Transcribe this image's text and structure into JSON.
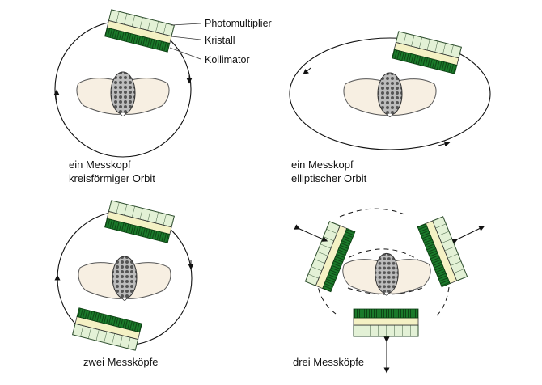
{
  "labels": {
    "photomultiplier": "Photomultiplier",
    "kristall": "Kristall",
    "kollimator": "Kollimator"
  },
  "panels": [
    {
      "caption_line1": "ein Messkopf",
      "caption_line2": "kreisförmiger Orbit"
    },
    {
      "caption_line1": "ein Messkopf",
      "caption_line2": "elliptischer Orbit"
    },
    {
      "caption_line1": "zwei Messköpfe",
      "caption_line2": ""
    },
    {
      "caption_line1": "drei Messköpfe",
      "caption_line2": ""
    }
  ],
  "colors": {
    "photomultiplier": "#e3f1d6",
    "kristall": "#f4f1c4",
    "kollimator": "#1a7a2a",
    "body": "#f7efe2",
    "organ": "#8a8a8a",
    "line": "#111111"
  }
}
